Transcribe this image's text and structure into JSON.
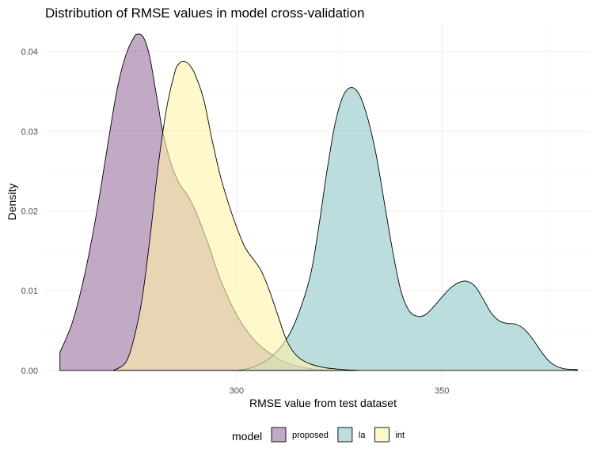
{
  "chart_data": {
    "type": "area",
    "title": "Distribution of RMSE values in model cross-validation",
    "xlabel": "RMSE value from test dataset",
    "ylabel": "Density",
    "xlim": [
      253,
      386
    ],
    "ylim": [
      -0.0015,
      0.0435
    ],
    "x_ticks": [
      300,
      350
    ],
    "y_ticks": [
      0.0,
      0.01,
      0.02,
      0.03,
      0.04
    ],
    "y_tick_labels": [
      "0.00",
      "0.01",
      "0.02",
      "0.03",
      "0.04"
    ],
    "grid": true,
    "legend": {
      "title": "model",
      "position": "bottom"
    },
    "series": [
      {
        "name": "proposed",
        "color": "#9970a0",
        "x": [
          257,
          260,
          263,
          266,
          269,
          271,
          273,
          275,
          276,
          277,
          278,
          279,
          280,
          281,
          282,
          284,
          286,
          288,
          290,
          293,
          296,
          300,
          304,
          308,
          312,
          316,
          320,
          325
        ],
        "y": [
          0.0023,
          0.006,
          0.012,
          0.02,
          0.0295,
          0.0355,
          0.0395,
          0.0418,
          0.0422,
          0.042,
          0.041,
          0.039,
          0.036,
          0.033,
          0.03,
          0.026,
          0.0235,
          0.022,
          0.02,
          0.016,
          0.0115,
          0.007,
          0.004,
          0.0022,
          0.001,
          0.0004,
          0.0001,
          0.0
        ]
      },
      {
        "name": "la",
        "color": "#8ec6c6",
        "x": [
          300,
          304,
          308,
          312,
          315,
          318,
          320,
          322,
          324,
          326,
          328,
          330,
          332,
          334,
          336,
          338,
          340,
          342,
          344,
          346,
          348,
          350,
          352,
          354,
          356,
          358,
          360,
          362,
          364,
          366,
          368,
          370,
          372,
          374,
          376,
          378,
          380,
          383
        ],
        "y": [
          0.0,
          0.0004,
          0.0015,
          0.0038,
          0.007,
          0.012,
          0.018,
          0.025,
          0.031,
          0.0345,
          0.0355,
          0.0345,
          0.0315,
          0.027,
          0.021,
          0.015,
          0.01,
          0.0075,
          0.0068,
          0.007,
          0.008,
          0.0092,
          0.0103,
          0.011,
          0.0112,
          0.0106,
          0.009,
          0.0072,
          0.0062,
          0.0059,
          0.0058,
          0.0052,
          0.004,
          0.0025,
          0.0012,
          0.0005,
          0.0002,
          0.0001
        ]
      },
      {
        "name": "int",
        "color": "#fff3a8",
        "x": [
          270,
          273,
          275,
          277,
          279,
          281,
          283,
          285,
          286,
          287,
          288,
          289,
          290,
          292,
          294,
          296,
          298,
          300,
          302,
          304,
          306,
          308,
          310,
          312,
          314,
          316,
          318,
          320,
          322,
          324,
          326,
          330
        ],
        "y": [
          0.0,
          0.001,
          0.004,
          0.009,
          0.017,
          0.026,
          0.033,
          0.0375,
          0.0385,
          0.0388,
          0.0386,
          0.038,
          0.037,
          0.034,
          0.029,
          0.0245,
          0.021,
          0.018,
          0.0155,
          0.014,
          0.0125,
          0.01,
          0.007,
          0.004,
          0.0022,
          0.0013,
          0.0008,
          0.0005,
          0.0003,
          0.0002,
          0.0001,
          0.0
        ]
      }
    ]
  }
}
